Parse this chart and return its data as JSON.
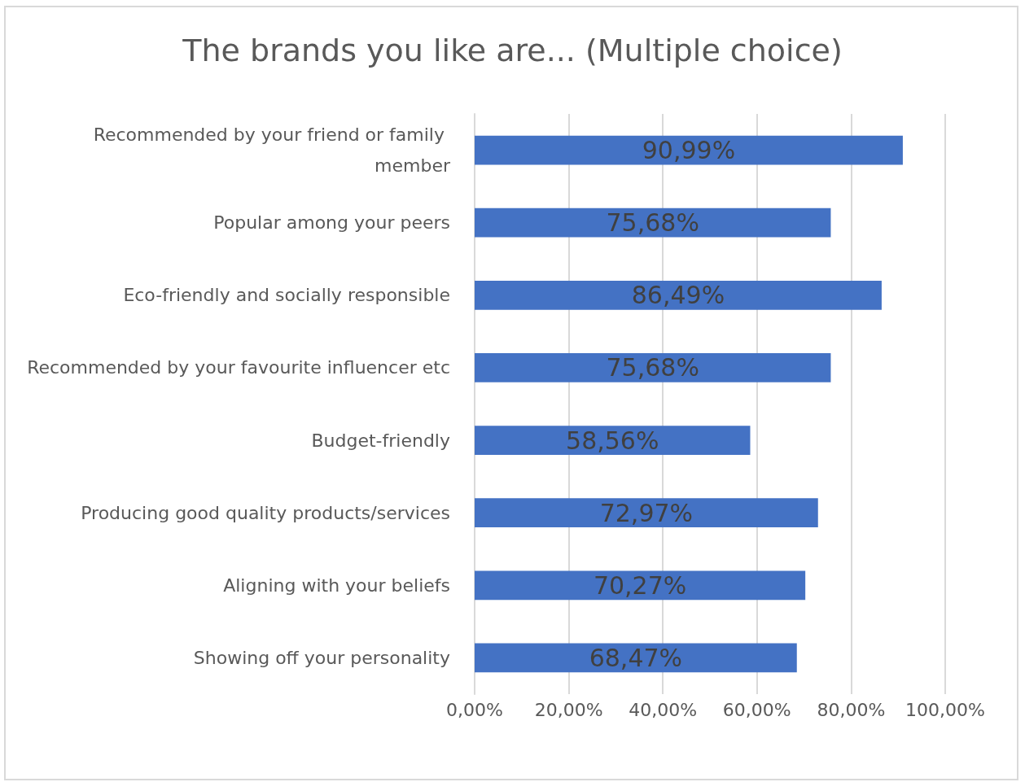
{
  "chart_data": {
    "type": "bar",
    "orientation": "horizontal",
    "title": "The brands you like are... (Multiple choice)",
    "categories": [
      "Recommended by your friend or family member",
      "Popular among your peers",
      "Eco-friendly and socially responsible",
      "Recommended by your favourite influencer etc",
      "Budget-friendly",
      "Producing good quality products/services",
      "Aligning with your beliefs",
      "Showing off your personality"
    ],
    "values": [
      90.99,
      75.68,
      86.49,
      75.68,
      58.56,
      72.97,
      70.27,
      68.47
    ],
    "value_labels": [
      "90,99%",
      "75,68%",
      "86,49%",
      "75,68%",
      "58,56%",
      "72,97%",
      "70,27%",
      "68,47%"
    ],
    "color": "#4472c4",
    "xlim": [
      0,
      100
    ],
    "xticks": [
      {
        "value": 0,
        "label": "0,00%"
      },
      {
        "value": 20,
        "label": "20,00%"
      },
      {
        "value": 40,
        "label": "40,00%"
      },
      {
        "value": 60,
        "label": "60,00%"
      },
      {
        "value": 80,
        "label": "80,00%"
      },
      {
        "value": 100,
        "label": "100,00%"
      }
    ],
    "grid": "x"
  }
}
